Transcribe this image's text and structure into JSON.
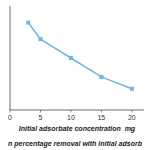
{
  "chart_data": {
    "type": "line",
    "x": [
      3,
      5,
      10,
      15,
      20
    ],
    "y": [
      95,
      88,
      80,
      72,
      67
    ],
    "color": "#6db8d8",
    "marker": "square",
    "x_label": "Initial adsorbate concentration  mg",
    "caption": "n percentage removal with initial adsorb",
    "xlim": [
      0,
      22
    ],
    "ylim": [
      58,
      102
    ],
    "xticks": [
      0,
      5,
      10,
      15,
      20
    ],
    "tick_labels": "x"
  }
}
